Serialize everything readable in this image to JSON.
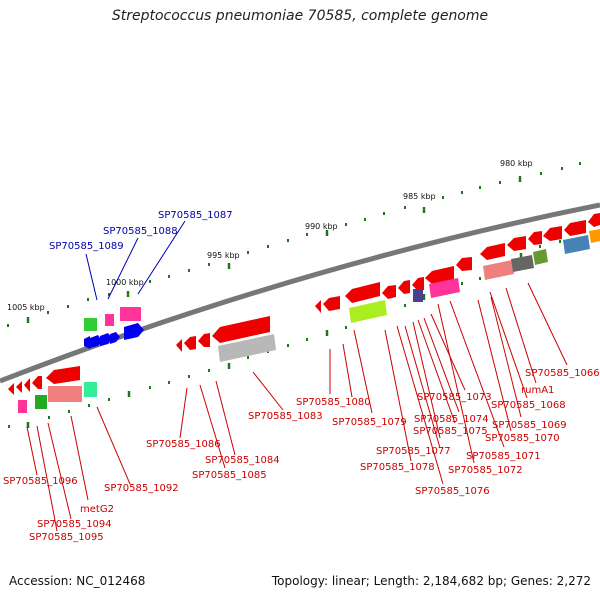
{
  "title": "Streptococcus pneumoniae 70585, complete genome",
  "accession": "Accession: NC_012468",
  "topology": "Topology: linear; Length: 2,184,682 bp; Genes: 2,272",
  "colors": {
    "backbone": "#777777",
    "forward_label": "#0000aa",
    "reverse_label": "#cc0000",
    "tick_green": "#1a7a1a"
  },
  "tick_labels": [
    "980 kbp",
    "985 kbp",
    "990 kbp",
    "995 kbp",
    "1000 kbp",
    "1005 kbp"
  ],
  "forward_gene_labels": [
    "SP70585_1087",
    "SP70585_1088",
    "SP70585_1089"
  ],
  "reverse_gene_labels": [
    "SP70585_1066",
    "rumA1",
    "SP70585_1068",
    "SP70585_1069",
    "SP70585_1070",
    "SP70585_1071",
    "SP70585_1072",
    "SP70585_1073",
    "SP70585_1074",
    "SP70585_1075",
    "SP70585_1076",
    "SP70585_1077",
    "SP70585_1078",
    "SP70585_1079",
    "SP70585_1080",
    "SP70585_1083",
    "SP70585_1084",
    "SP70585_1085",
    "SP70585_1086",
    "SP70585_1092",
    "metG2",
    "SP70585_1094",
    "SP70585_1095",
    "SP70585_1096"
  ]
}
